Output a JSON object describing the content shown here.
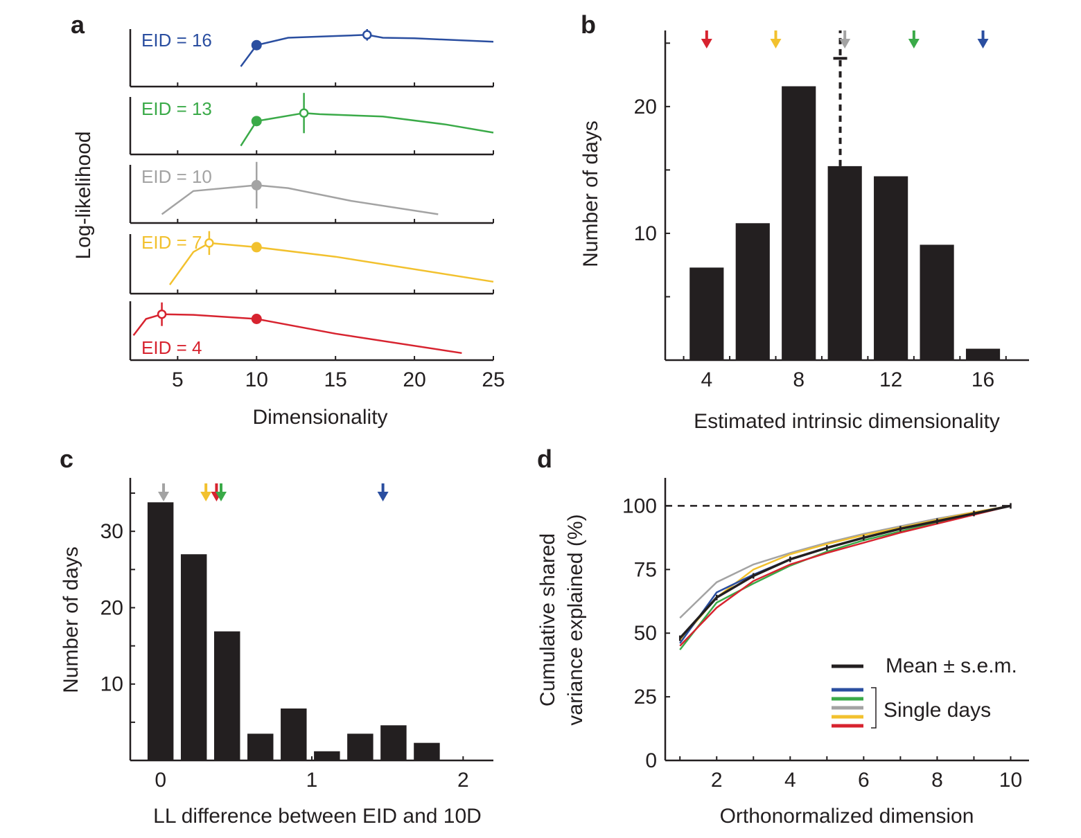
{
  "colors": {
    "blue": "#2a4ea0",
    "green": "#3aaa48",
    "gray": "#a3a3a3",
    "yellow": "#f2c12e",
    "red": "#d7232f",
    "black": "#231f20"
  },
  "chart_data": [
    {
      "panel": "a",
      "type": "line",
      "xlabel": "Dimensionality",
      "ylabel": "Log-likelihood",
      "xlim": [
        2,
        25
      ],
      "x_ticks": [
        5,
        10,
        15,
        20,
        25
      ],
      "series": [
        {
          "name": "EID = 16",
          "color": "blue",
          "x": [
            9,
            10,
            12,
            15,
            17,
            18,
            20,
            25
          ],
          "y": [
            0.35,
            0.72,
            0.85,
            0.88,
            0.9,
            0.85,
            0.84,
            0.78
          ],
          "filled_marker": {
            "x": 10,
            "y": 0.72
          },
          "open_marker": {
            "x": 17,
            "y": 0.9,
            "err": 0.1
          }
        },
        {
          "name": "EID = 13",
          "color": "green",
          "x": [
            9,
            10,
            13,
            14,
            18,
            22,
            25
          ],
          "y": [
            0.15,
            0.58,
            0.72,
            0.7,
            0.66,
            0.52,
            0.38
          ],
          "filled_marker": {
            "x": 10,
            "y": 0.58
          },
          "open_marker": {
            "x": 13,
            "y": 0.72,
            "err": 0.35
          }
        },
        {
          "name": "EID = 10",
          "color": "gray",
          "x": [
            4,
            6,
            10,
            12,
            16,
            21.5
          ],
          "y": [
            0.15,
            0.55,
            0.65,
            0.6,
            0.38,
            0.15
          ],
          "filled_marker": {
            "x": 10,
            "y": 0.65,
            "err": 0.4
          }
        },
        {
          "name": "EID = 7",
          "color": "yellow",
          "x": [
            4.5,
            6,
            7,
            10,
            15,
            25
          ],
          "y": [
            0.15,
            0.7,
            0.85,
            0.78,
            0.62,
            0.2
          ],
          "filled_marker": {
            "x": 10,
            "y": 0.78
          },
          "open_marker": {
            "x": 7,
            "y": 0.85,
            "err": 0.2
          }
        },
        {
          "name": "EID = 4",
          "color": "red",
          "x": [
            2.2,
            3,
            4,
            6,
            10,
            15,
            23
          ],
          "y": [
            0.42,
            0.7,
            0.78,
            0.77,
            0.7,
            0.45,
            0.12
          ],
          "filled_marker": {
            "x": 10,
            "y": 0.7
          },
          "open_marker": {
            "x": 4,
            "y": 0.78,
            "err": 0.2
          }
        }
      ]
    },
    {
      "panel": "b",
      "type": "bar",
      "xlabel": "Estimated intrinsic dimensionality",
      "ylabel": "Number of days",
      "x_ticks": [
        4,
        8,
        12,
        16
      ],
      "y_ticks": [
        10,
        20
      ],
      "ylim": [
        0,
        26
      ],
      "xlim": [
        2.2,
        18
      ],
      "categories": [
        4,
        6,
        8,
        10,
        12,
        14,
        16
      ],
      "values": [
        7.3,
        10.8,
        21.6,
        15.3,
        14.5,
        9.1,
        0.9
      ],
      "mean_line": {
        "x": 9.8,
        "y_top": 23.8
      },
      "arrows": [
        {
          "color": "red",
          "x": 4
        },
        {
          "color": "yellow",
          "x": 7
        },
        {
          "color": "gray",
          "x": 10
        },
        {
          "color": "green",
          "x": 13
        },
        {
          "color": "blue",
          "x": 16
        }
      ]
    },
    {
      "panel": "c",
      "type": "bar",
      "xlabel": "LL difference between EID and 10D",
      "ylabel": "Number of days",
      "x_ticks": [
        0,
        1,
        2
      ],
      "y_ticks": [
        10,
        20,
        30
      ],
      "ylim": [
        0,
        37
      ],
      "xlim": [
        -0.2,
        2.2
      ],
      "bin_width": 0.22,
      "categories": [
        0,
        0.22,
        0.44,
        0.66,
        0.88,
        1.1,
        1.32,
        1.54,
        1.76
      ],
      "values": [
        33.8,
        27,
        16.9,
        3.5,
        6.8,
        1.2,
        3.5,
        4.6,
        2.3
      ],
      "arrows": [
        {
          "color": "gray",
          "x": 0.02
        },
        {
          "color": "yellow",
          "x": 0.3
        },
        {
          "color": "red",
          "x": 0.37
        },
        {
          "color": "green",
          "x": 0.4
        },
        {
          "color": "blue",
          "x": 1.47
        }
      ]
    },
    {
      "panel": "d",
      "type": "line",
      "xlabel": "Orthonormalized dimension",
      "ylabel_line1": "Cumulative shared",
      "ylabel_line2": "variance explained (%)",
      "x_ticks": [
        2,
        4,
        6,
        8,
        10
      ],
      "y_ticks": [
        0,
        25,
        50,
        75,
        100
      ],
      "xlim": [
        0.6,
        10.5
      ],
      "ylim": [
        0,
        111
      ],
      "reference_line": 100,
      "legend": {
        "mean": "Mean ± s.e.m.",
        "single": "Single days",
        "position": "bottom-right"
      },
      "series": [
        {
          "color": "gray",
          "x": [
            1,
            2,
            3,
            4,
            5,
            6,
            7,
            8,
            9,
            10
          ],
          "y": [
            56,
            70,
            77,
            81.5,
            85.5,
            89,
            92,
            95,
            97.5,
            100
          ]
        },
        {
          "color": "yellow",
          "x": [
            1,
            2,
            3,
            4,
            5,
            6,
            7,
            8,
            9,
            10
          ],
          "y": [
            47,
            64,
            75,
            81,
            85,
            88.5,
            91.5,
            94.5,
            97.5,
            100
          ]
        },
        {
          "color": "blue",
          "x": [
            1,
            2,
            3,
            4,
            5,
            6,
            7,
            8,
            9,
            10
          ],
          "y": [
            46,
            66,
            73,
            79,
            83.5,
            87.5,
            91,
            94,
            97,
            100
          ]
        },
        {
          "color": "green",
          "x": [
            1,
            2,
            3,
            4,
            5,
            6,
            7,
            8,
            9,
            10
          ],
          "y": [
            43.5,
            62,
            69.5,
            76.5,
            82,
            86.5,
            90,
            93.5,
            97,
            100
          ]
        },
        {
          "color": "red",
          "x": [
            1,
            2,
            3,
            4,
            5,
            6,
            7,
            8,
            9,
            10
          ],
          "y": [
            45,
            60,
            70.5,
            77,
            81.5,
            85.5,
            89.5,
            93,
            96.5,
            100
          ]
        },
        {
          "color": "black",
          "mean": true,
          "x": [
            1,
            2,
            3,
            4,
            5,
            6,
            7,
            8,
            9,
            10
          ],
          "y": [
            48,
            64,
            72.5,
            79,
            83.5,
            87.5,
            91,
            94,
            97,
            100
          ]
        }
      ]
    }
  ]
}
